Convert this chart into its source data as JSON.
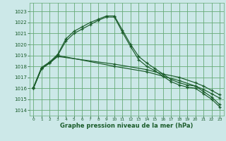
{
  "title": "Graphe pression niveau de la mer (hPa)",
  "background_color": "#cce8e8",
  "grid_color": "#66aa77",
  "line_color": "#1a5c2a",
  "xlim": [
    -0.5,
    23.5
  ],
  "ylim": [
    1013.5,
    1023.8
  ],
  "xticks": [
    0,
    1,
    2,
    3,
    4,
    5,
    6,
    7,
    8,
    9,
    10,
    11,
    12,
    13,
    14,
    15,
    16,
    17,
    18,
    19,
    20,
    21,
    22,
    23
  ],
  "yticks": [
    1014,
    1015,
    1016,
    1017,
    1018,
    1019,
    1020,
    1021,
    1022,
    1023
  ],
  "curve1_x": [
    0,
    1,
    2,
    3,
    4,
    5,
    6,
    7,
    8,
    9,
    10,
    11,
    12,
    13,
    14,
    15,
    16,
    17,
    18,
    19,
    20,
    21,
    22,
    23
  ],
  "curve1_y": [
    1016.0,
    1017.8,
    1018.3,
    1019.0,
    1020.3,
    1021.0,
    1021.4,
    1021.8,
    1022.2,
    1022.5,
    1022.5,
    1021.1,
    1019.8,
    1018.6,
    1018.0,
    1017.6,
    1017.1,
    1016.6,
    1016.3,
    1016.1,
    1016.0,
    1015.5,
    1015.0,
    1014.3
  ],
  "curve2_x": [
    0,
    1,
    2,
    3,
    4,
    5,
    6,
    7,
    8,
    9,
    10,
    11,
    12,
    13,
    14,
    15,
    16,
    17,
    18,
    19,
    20,
    21,
    22,
    23
  ],
  "curve2_y": [
    1016.1,
    1017.9,
    1018.4,
    1019.1,
    1020.5,
    1021.2,
    1021.6,
    1022.0,
    1022.3,
    1022.6,
    1022.6,
    1021.3,
    1020.0,
    1018.9,
    1018.3,
    1017.8,
    1017.3,
    1016.8,
    1016.5,
    1016.3,
    1016.2,
    1015.7,
    1015.2,
    1014.5
  ],
  "line1_x": [
    0,
    1,
    2,
    3,
    10,
    14,
    16,
    18,
    20,
    21,
    22,
    23
  ],
  "line1_y": [
    1016.0,
    1017.8,
    1018.3,
    1018.9,
    1018.2,
    1017.7,
    1017.3,
    1017.0,
    1016.5,
    1016.2,
    1015.8,
    1015.4
  ],
  "line2_x": [
    0,
    1,
    2,
    3,
    10,
    14,
    16,
    18,
    20,
    21,
    22,
    23
  ],
  "line2_y": [
    1016.0,
    1017.8,
    1018.3,
    1019.0,
    1018.0,
    1017.5,
    1017.1,
    1016.7,
    1016.2,
    1015.9,
    1015.5,
    1015.1
  ]
}
